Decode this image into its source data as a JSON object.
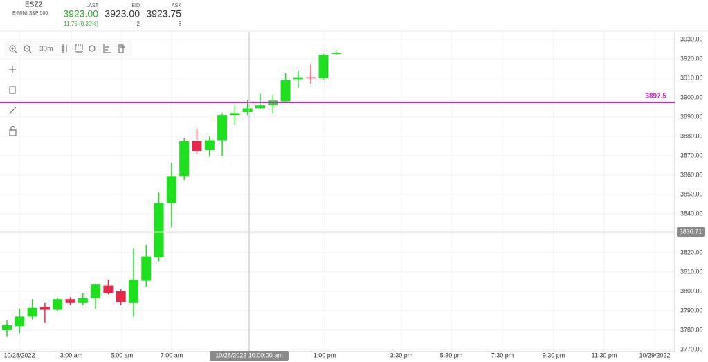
{
  "header": {
    "symbol": "ESZ2",
    "description": "E-MINI S&P 500",
    "last": {
      "label": "LAST",
      "price": "3923.00",
      "change": "11.75 (0.30%)"
    },
    "bid": {
      "label": "BID",
      "price": "3923.00",
      "size": "2"
    },
    "ask": {
      "label": "ASK",
      "price": "3923.75",
      "size": "6"
    }
  },
  "toolbar": {
    "interval": "30m"
  },
  "chart_data": {
    "type": "candlestick",
    "up_color": "#1fe01f",
    "down_color": "#e8284a",
    "open": [
      3780,
      3782,
      3787,
      3792,
      3790.5,
      3796,
      3794,
      3796.5,
      3803,
      3800,
      3794,
      3805.5,
      3817.5,
      3845.5,
      3859.5,
      3877.5,
      3873,
      3878,
      3891,
      3892.5,
      3894.5,
      3896,
      3898,
      3909.5,
      3910.5,
      3910,
      3922.5
    ],
    "high": [
      3785,
      3791,
      3796,
      3794,
      3796.5,
      3797,
      3799,
      3804,
      3806,
      3801,
      3822,
      3824,
      3851,
      3866.5,
      3879,
      3884,
      3880,
      3892,
      3896,
      3899,
      3902,
      3901.5,
      3912.5,
      3914,
      3917,
      3922.5,
      3924.5
    ],
    "low": [
      3776.5,
      3778.5,
      3785.5,
      3784,
      3790,
      3793,
      3793,
      3791,
      3798.5,
      3793,
      3787,
      3802.5,
      3815.5,
      3833,
      3857.5,
      3871,
      3869.5,
      3870,
      3886,
      3891,
      3894,
      3892,
      3897.5,
      3905,
      3907,
      3909.5,
      3922
    ],
    "close": [
      3782.5,
      3787,
      3791.5,
      3790.5,
      3796,
      3794,
      3796.5,
      3803.5,
      3799,
      3794.5,
      3806,
      3818,
      3845.5,
      3859.5,
      3877.5,
      3872.5,
      3878,
      3891,
      3892,
      3894.5,
      3896,
      3898.5,
      3909,
      3910.5,
      3910,
      3922,
      3923
    ],
    "x_labels": [
      "10/28/2022",
      "3:00 am",
      "5:00 am",
      "7:00 am",
      "1:00 pm",
      "3:30 pm",
      "5:30 pm",
      "7:30 pm",
      "9:30 pm",
      "11:30 pm",
      "10/29/2022"
    ],
    "ylim": [
      3770,
      3930
    ],
    "yticks": [
      {
        "value": 3770,
        "label": "3770.00"
      },
      {
        "value": 3780,
        "label": "3780.00"
      },
      {
        "value": 3790,
        "label": "3790.00"
      },
      {
        "value": 3800,
        "label": "3800.00"
      },
      {
        "value": 3810,
        "label": "3810.00"
      },
      {
        "value": 3820,
        "label": "3820.00"
      },
      {
        "value": 3830,
        "label": "3830.00"
      },
      {
        "value": 3840,
        "label": "3840.00"
      },
      {
        "value": 3850,
        "label": "3850.00"
      },
      {
        "value": 3860,
        "label": "3860.00"
      },
      {
        "value": 3870,
        "label": "3870.00"
      },
      {
        "value": 3880,
        "label": "3880.00"
      },
      {
        "value": 3890,
        "label": "3890.00"
      },
      {
        "value": 3900,
        "label": "3900.00"
      },
      {
        "value": 3910,
        "label": "3910.00"
      },
      {
        "value": 3920,
        "label": "3920.00"
      },
      {
        "value": 3930,
        "label": "3930.00"
      }
    ],
    "grid": true,
    "price_line": {
      "value": 3897.5,
      "color": "#cc22cc"
    },
    "crosshair": {
      "time_label": "10/28/2022 10:00:00 am",
      "price": 3830.71
    }
  }
}
